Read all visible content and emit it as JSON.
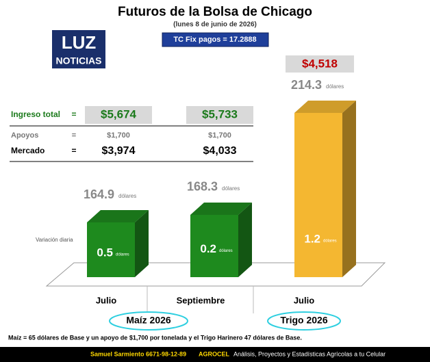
{
  "chart_data": {
    "type": "bar3d",
    "title": "Futuros de la Bolsa de Chicago",
    "subtitle": "(lunes 8 de junio de 2026)",
    "categories": [
      "Julio",
      "Septiembre",
      "Julio"
    ],
    "values": [
      164.9,
      168.3,
      214.3
    ],
    "value_unit": "dólares",
    "colors": [
      "#1e8a1e",
      "#1e8a1e",
      "#f4b731"
    ],
    "daily_change": {
      "label": "Variación diaria",
      "values": [
        0.5,
        0.2,
        1.2
      ]
    },
    "groups": [
      "Maíz 2026",
      "Trigo 2026"
    ]
  },
  "logo": {
    "line1": "LUZ",
    "line2": "NOTICIAS"
  },
  "exchange_rate": "TC Fix pagos = 17.2888",
  "trigo_price": "$4,518",
  "table": {
    "rows": [
      {
        "label": "Ingreso total",
        "sign": "=",
        "values": [
          "$5,674",
          "$5,733"
        ]
      },
      {
        "label": "Apoyos",
        "sign": "=",
        "values": [
          "$1,700",
          "$1,700"
        ]
      },
      {
        "label": "Mercado",
        "sign": "=",
        "values": [
          "$3,974",
          "$4,033"
        ]
      }
    ]
  },
  "footnote": "Maíz = 65 dólares de Base y un apoyo de $1,700 por tonelada y el Trigo Harinero 47 dólares de Base.",
  "footer": {
    "contact": "Samuel Sarmiento 6671-98-12-89",
    "brand": "AGROCEL",
    "tagline": "Análisis, Proyectos y Estadísticas Agrícolas a tu Celular"
  }
}
